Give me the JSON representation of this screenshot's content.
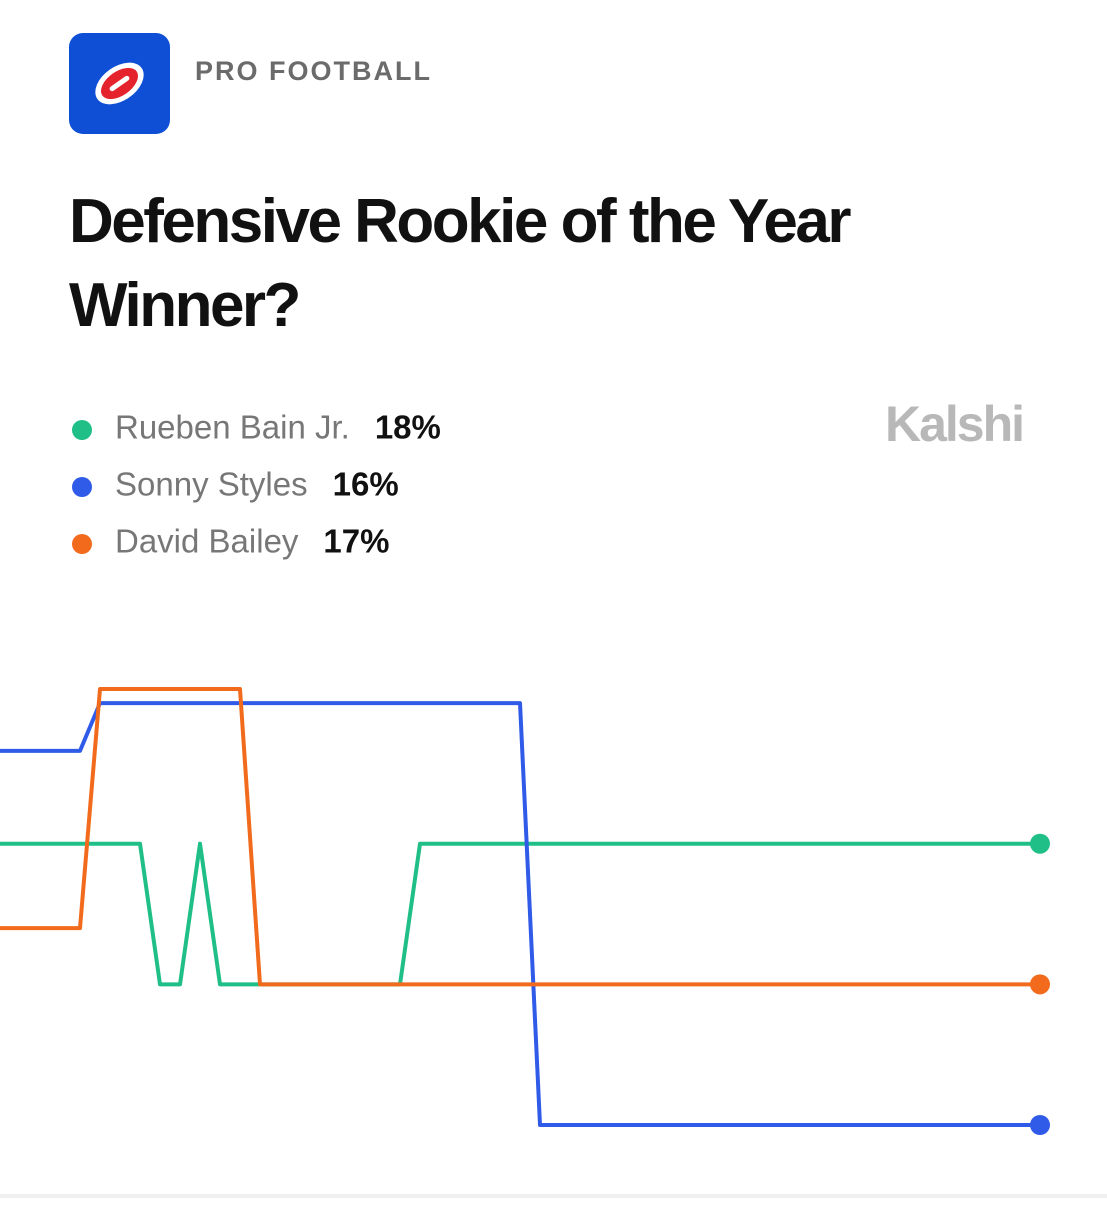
{
  "header": {
    "category": "PRO FOOTBALL",
    "brand": "Kalshi"
  },
  "chart_data": {
    "type": "line",
    "title": "Defensive Rookie of the Year Winner?",
    "series": [
      {
        "name": "Rueben Bain Jr.",
        "color": "#1fbf87",
        "last_label": "18%",
        "values": [
          18,
          18,
          18,
          18,
          18,
          18,
          18,
          18,
          17,
          17,
          18,
          17,
          17,
          17,
          17,
          17,
          17,
          17,
          17,
          17,
          17,
          18,
          18,
          18,
          18,
          18,
          18,
          18,
          18,
          18,
          18,
          18,
          18,
          18,
          18,
          18,
          18,
          18,
          18,
          18,
          18,
          18,
          18,
          18,
          18,
          18,
          18,
          18,
          18,
          18,
          18,
          18,
          18
        ]
      },
      {
        "name": "Sonny Styles",
        "color": "#2f5be8",
        "last_label": "16%",
        "values": [
          18.66,
          18.66,
          18.66,
          18.66,
          18.66,
          19,
          19,
          19,
          19,
          19,
          19,
          19,
          19,
          19,
          19,
          19,
          19,
          19,
          19,
          19,
          19,
          19,
          19,
          19,
          19,
          19,
          19,
          16,
          16,
          16,
          16,
          16,
          16,
          16,
          16,
          16,
          16,
          16,
          16,
          16,
          16,
          16,
          16,
          16,
          16,
          16,
          16,
          16,
          16,
          16,
          16,
          16,
          16
        ]
      },
      {
        "name": "David Bailey",
        "color": "#f26b1d",
        "last_label": "17%",
        "values": [
          17.4,
          17.4,
          17.4,
          17.4,
          17.4,
          19.1,
          19.1,
          19.1,
          19.1,
          19.1,
          19.1,
          19.1,
          19.1,
          17,
          17,
          17,
          17,
          17,
          17,
          17,
          17,
          17,
          17,
          17,
          17,
          17,
          17,
          17,
          17,
          17,
          17,
          17,
          17,
          17,
          17,
          17,
          17,
          17,
          17,
          17,
          17,
          17,
          17,
          17,
          17,
          17,
          17,
          17,
          17,
          17,
          17,
          17,
          17
        ]
      }
    ]
  }
}
